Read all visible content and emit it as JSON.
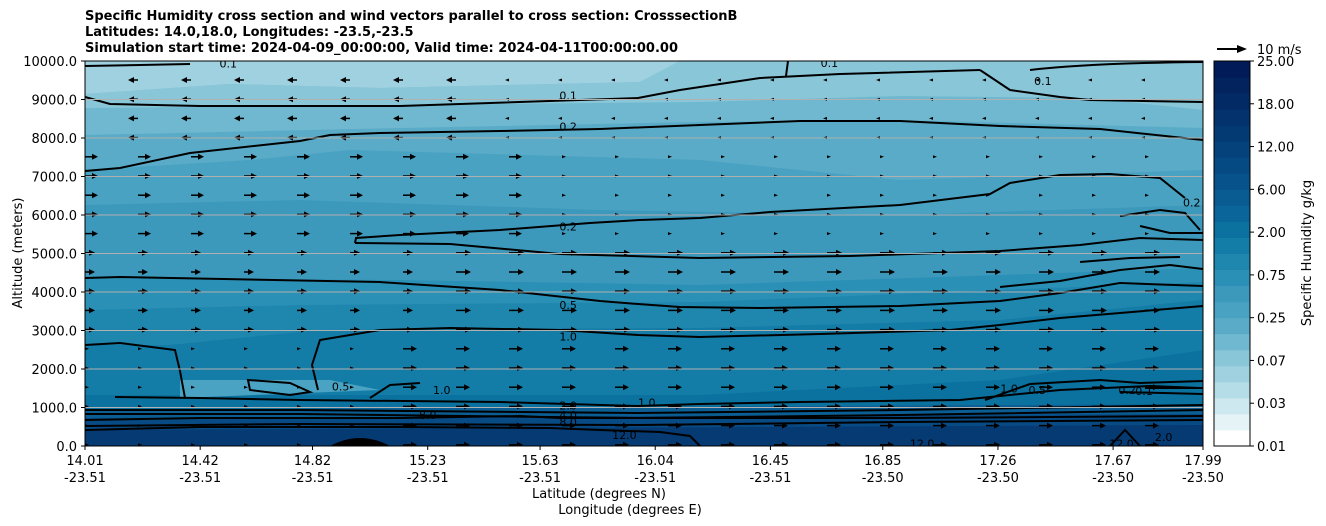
{
  "title_lines": [
    "Specific Humidity cross section and wind vectors parallel to cross section: CrosssectionB",
    "Latitudes: 14.0,18.0, Longitudes: -23.5,-23.5",
    "Simulation start time: 2024-04-09_00:00:00, Valid time: 2024-04-11T00:00:00.00"
  ],
  "chart_data": {
    "type": "contour",
    "title": "Specific Humidity cross section and wind vectors parallel to cross section: CrosssectionB",
    "ylabel": "Altitude (meters)",
    "xlabel_lines": [
      "Latitude (degrees N)",
      "Longitude (degrees E)"
    ],
    "ylim": [
      0,
      10000
    ],
    "y_ticks": [
      "0.0",
      "1000.0",
      "2000.0",
      "3000.0",
      "4000.0",
      "5000.0",
      "6000.0",
      "7000.0",
      "8000.0",
      "9000.0",
      "10000.0"
    ],
    "x_ticks": [
      {
        "lat": "14.01",
        "lon": "-23.51"
      },
      {
        "lat": "14.42",
        "lon": "-23.51"
      },
      {
        "lat": "14.82",
        "lon": "-23.51"
      },
      {
        "lat": "15.23",
        "lon": "-23.51"
      },
      {
        "lat": "15.63",
        "lon": "-23.51"
      },
      {
        "lat": "16.04",
        "lon": "-23.51"
      },
      {
        "lat": "16.45",
        "lon": "-23.51"
      },
      {
        "lat": "16.85",
        "lon": "-23.50"
      },
      {
        "lat": "17.26",
        "lon": "-23.50"
      },
      {
        "lat": "17.67",
        "lon": "-23.50"
      },
      {
        "lat": "17.99",
        "lon": "-23.50"
      }
    ],
    "colorbar_label": "Specific Humidity g/kg",
    "colorbar_ticks": [
      "0.01",
      "0.03",
      "0.07",
      "0.25",
      "0.75",
      "2.00",
      "6.00",
      "12.00",
      "18.00",
      "25.00"
    ],
    "contour_labels": [
      {
        "text": "0.1",
        "lat": 14.52,
        "alt": 9930
      },
      {
        "text": "0.1",
        "lat": 16.66,
        "alt": 9950
      },
      {
        "text": "0.1",
        "lat": 17.42,
        "alt": 9480
      },
      {
        "text": "0.1",
        "lat": 15.73,
        "alt": 9100
      },
      {
        "text": "0.2",
        "lat": 15.73,
        "alt": 8300
      },
      {
        "text": "0.2",
        "lat": 15.73,
        "alt": 5700
      },
      {
        "text": "0.2",
        "lat": 17.95,
        "alt": 6320
      },
      {
        "text": "0.5",
        "lat": 15.73,
        "alt": 3660
      },
      {
        "text": "1.0",
        "lat": 15.73,
        "alt": 2840
      },
      {
        "text": "0.5",
        "lat": 14.92,
        "alt": 1550
      },
      {
        "text": "1.0",
        "lat": 15.28,
        "alt": 1460
      },
      {
        "text": "2.0",
        "lat": 15.73,
        "alt": 1050
      },
      {
        "text": "4.0",
        "lat": 15.73,
        "alt": 800
      },
      {
        "text": "8.0",
        "lat": 15.23,
        "alt": 800
      },
      {
        "text": "8.0",
        "lat": 15.73,
        "alt": 620
      },
      {
        "text": "12.0",
        "lat": 15.93,
        "alt": 280
      },
      {
        "text": "1.0",
        "lat": 16.01,
        "alt": 1130
      },
      {
        "text": "12.0",
        "lat": 16.99,
        "alt": 70
      },
      {
        "text": "1.0",
        "lat": 17.3,
        "alt": 1500
      },
      {
        "text": "0.5",
        "lat": 17.4,
        "alt": 1450
      },
      {
        "text": "0.2",
        "lat": 17.72,
        "alt": 1460
      },
      {
        "text": "0.1",
        "lat": 17.78,
        "alt": 1430
      },
      {
        "text": "12.0",
        "lat": 17.7,
        "alt": 60
      },
      {
        "text": "2.0",
        "lat": 17.85,
        "alt": 240
      }
    ],
    "wind_reference": "10 m/s"
  }
}
